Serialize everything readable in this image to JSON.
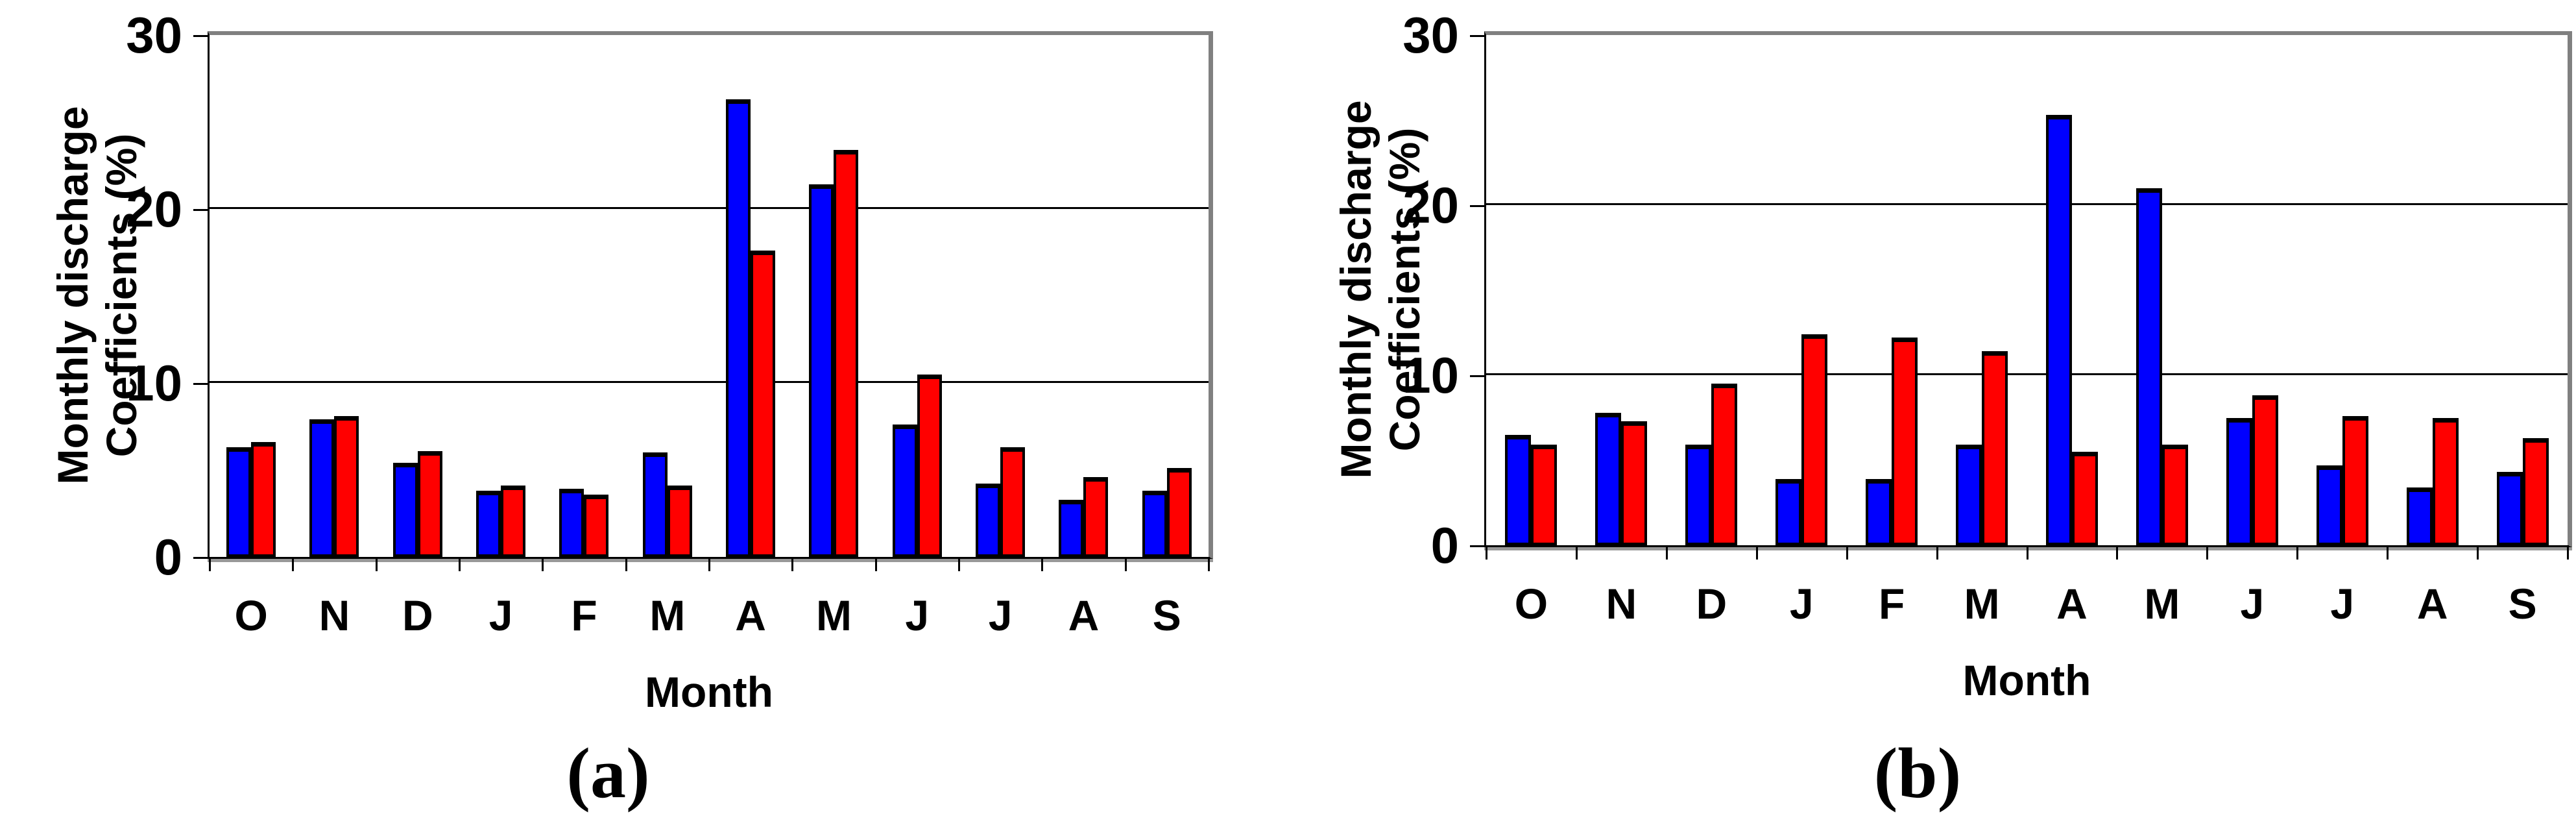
{
  "figure": {
    "background_color": "#ffffff",
    "y_axis_title_line1": "Monthly discharge",
    "y_axis_title_line2": "Coefficients (%)",
    "x_axis_title": "Month",
    "y_tick_labels": [
      "0",
      "10",
      "20",
      "30"
    ],
    "colors": {
      "series1_blue": "#0000ff",
      "series2_red": "#ff0000",
      "bar_outline": "#000000",
      "frame_gray": "#808080",
      "gridline_black": "#000000"
    }
  },
  "chart_data": [
    {
      "type": "bar",
      "panel_label": "(a)",
      "xlabel": "Month",
      "ylabel": "Monthly discharge Coefficients (%)",
      "ylim": [
        0,
        30
      ],
      "y_tick_interval": 10,
      "grid": true,
      "legend_position": "none",
      "categories": [
        "O",
        "N",
        "D",
        "J",
        "F",
        "M",
        "A",
        "M",
        "J",
        "J",
        "A",
        "S"
      ],
      "series": [
        {
          "name": "series-1-blue",
          "color": "#0000ff",
          "values": [
            6.3,
            7.9,
            5.4,
            3.8,
            3.9,
            6.0,
            26.3,
            21.4,
            7.6,
            4.2,
            3.3,
            3.8
          ]
        },
        {
          "name": "series-2-red",
          "color": "#ff0000",
          "values": [
            6.6,
            8.1,
            6.1,
            4.1,
            3.6,
            4.1,
            17.6,
            23.4,
            10.5,
            6.3,
            4.6,
            5.1
          ]
        }
      ]
    },
    {
      "type": "bar",
      "panel_label": "(b)",
      "xlabel": "Month",
      "ylabel": "Monthly discharge Coefficients (%)",
      "ylim": [
        0,
        30
      ],
      "y_tick_interval": 10,
      "grid": true,
      "legend_position": "none",
      "categories": [
        "O",
        "N",
        "D",
        "J",
        "F",
        "M",
        "A",
        "M",
        "J",
        "J",
        "A",
        "S"
      ],
      "series": [
        {
          "name": "series-1-blue",
          "color": "#0000ff",
          "values": [
            6.5,
            7.8,
            5.9,
            3.9,
            3.9,
            5.9,
            25.3,
            21.0,
            7.5,
            4.7,
            3.4,
            4.3
          ]
        },
        {
          "name": "series-2-red",
          "color": "#ff0000",
          "values": [
            5.9,
            7.3,
            9.5,
            12.4,
            12.2,
            11.4,
            5.5,
            5.9,
            8.8,
            7.6,
            7.5,
            6.3
          ]
        }
      ]
    }
  ]
}
